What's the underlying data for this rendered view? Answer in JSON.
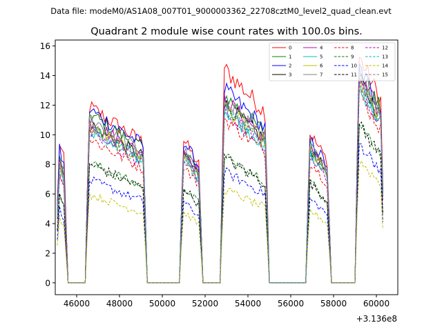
{
  "figure": {
    "header": "Data file: modeM0/AS1A08_007T01_9000003362_22708cztM0_level2_quad_clean.evt",
    "offset_label": "+3.136e8"
  },
  "chart_data": {
    "type": "line",
    "title": "Quadrant 2 module wise count rates with 100.0s bins.",
    "xlabel": "",
    "ylabel": "",
    "x_offset": 313600000,
    "xlim": [
      45000,
      61000
    ],
    "ylim": [
      -0.8,
      16.4
    ],
    "x_ticks": [
      46000,
      48000,
      50000,
      52000,
      54000,
      56000,
      58000,
      60000
    ],
    "y_ticks": [
      0,
      2,
      4,
      6,
      8,
      10,
      12,
      14,
      16
    ],
    "x_tick_labels": [
      "46000",
      "48000",
      "50000",
      "52000",
      "54000",
      "56000",
      "58000",
      "60000"
    ],
    "y_tick_labels": [
      "0",
      "2",
      "4",
      "6",
      "8",
      "10",
      "12",
      "14",
      "16"
    ],
    "grid": false,
    "legend_position": "top-right",
    "bin_s": 100,
    "segments": [
      {
        "start": 45100,
        "end": 45500
      },
      {
        "start": 46500,
        "end": 49200
      },
      {
        "start": 50900,
        "end": 51800
      },
      {
        "start": 52800,
        "end": 54900
      },
      {
        "start": 56800,
        "end": 57800
      },
      {
        "start": 59100,
        "end": 60300
      }
    ],
    "gap_level": 0,
    "series": [
      {
        "name": "0",
        "color": "#ff0000",
        "dash": "solid",
        "levels": [
          10.0,
          12.0,
          9.9,
          14.6,
          10.3,
          15.5
        ]
      },
      {
        "name": "1",
        "color": "#008000",
        "dash": "solid",
        "levels": [
          8.8,
          11.5,
          9.3,
          12.8,
          9.6,
          14.6
        ]
      },
      {
        "name": "2",
        "color": "#0000ff",
        "dash": "solid",
        "levels": [
          9.5,
          11.8,
          9.8,
          13.2,
          9.9,
          14.8
        ]
      },
      {
        "name": "3",
        "color": "#000000",
        "dash": "solid",
        "levels": [
          8.6,
          10.8,
          9.0,
          12.2,
          9.3,
          14.0
        ]
      },
      {
        "name": "4",
        "color": "#bf00bf",
        "dash": "solid",
        "levels": [
          9.0,
          11.0,
          9.3,
          12.5,
          9.5,
          14.2
        ]
      },
      {
        "name": "5",
        "color": "#00bfbf",
        "dash": "solid",
        "levels": [
          8.2,
          10.5,
          8.7,
          11.8,
          9.0,
          13.5
        ]
      },
      {
        "name": "6",
        "color": "#bfbf00",
        "dash": "solid",
        "levels": [
          8.4,
          10.6,
          8.8,
          12.0,
          9.1,
          13.7
        ]
      },
      {
        "name": "7",
        "color": "#808080",
        "dash": "solid",
        "levels": [
          8.8,
          11.2,
          9.2,
          12.6,
          9.4,
          14.3
        ]
      },
      {
        "name": "8",
        "color": "#ff0000",
        "dash": "dashed",
        "levels": [
          7.8,
          9.8,
          8.2,
          11.2,
          8.4,
          13.0
        ]
      },
      {
        "name": "9",
        "color": "#008000",
        "dash": "dashed",
        "levels": [
          6.5,
          8.2,
          6.7,
          8.6,
          7.0,
          11.0
        ]
      },
      {
        "name": "10",
        "color": "#0000ff",
        "dash": "dashed",
        "levels": [
          5.3,
          7.0,
          5.6,
          7.6,
          5.8,
          9.6
        ]
      },
      {
        "name": "11",
        "color": "#000000",
        "dash": "dashed",
        "levels": [
          6.4,
          8.1,
          6.6,
          8.5,
          6.9,
          10.8
        ]
      },
      {
        "name": "12",
        "color": "#bf00bf",
        "dash": "dashed",
        "levels": [
          8.0,
          10.2,
          8.6,
          11.6,
          8.8,
          13.6
        ]
      },
      {
        "name": "13",
        "color": "#00bfbf",
        "dash": "dashed",
        "levels": [
          8.1,
          10.4,
          8.7,
          11.8,
          8.9,
          13.8
        ]
      },
      {
        "name": "14",
        "color": "#bfbf00",
        "dash": "dashed",
        "levels": [
          4.6,
          6.0,
          4.9,
          6.4,
          5.0,
          8.4
        ]
      },
      {
        "name": "15",
        "color": "#808080",
        "dash": "dashed",
        "levels": [
          8.3,
          10.7,
          8.9,
          12.0,
          9.1,
          13.9
        ]
      }
    ]
  }
}
